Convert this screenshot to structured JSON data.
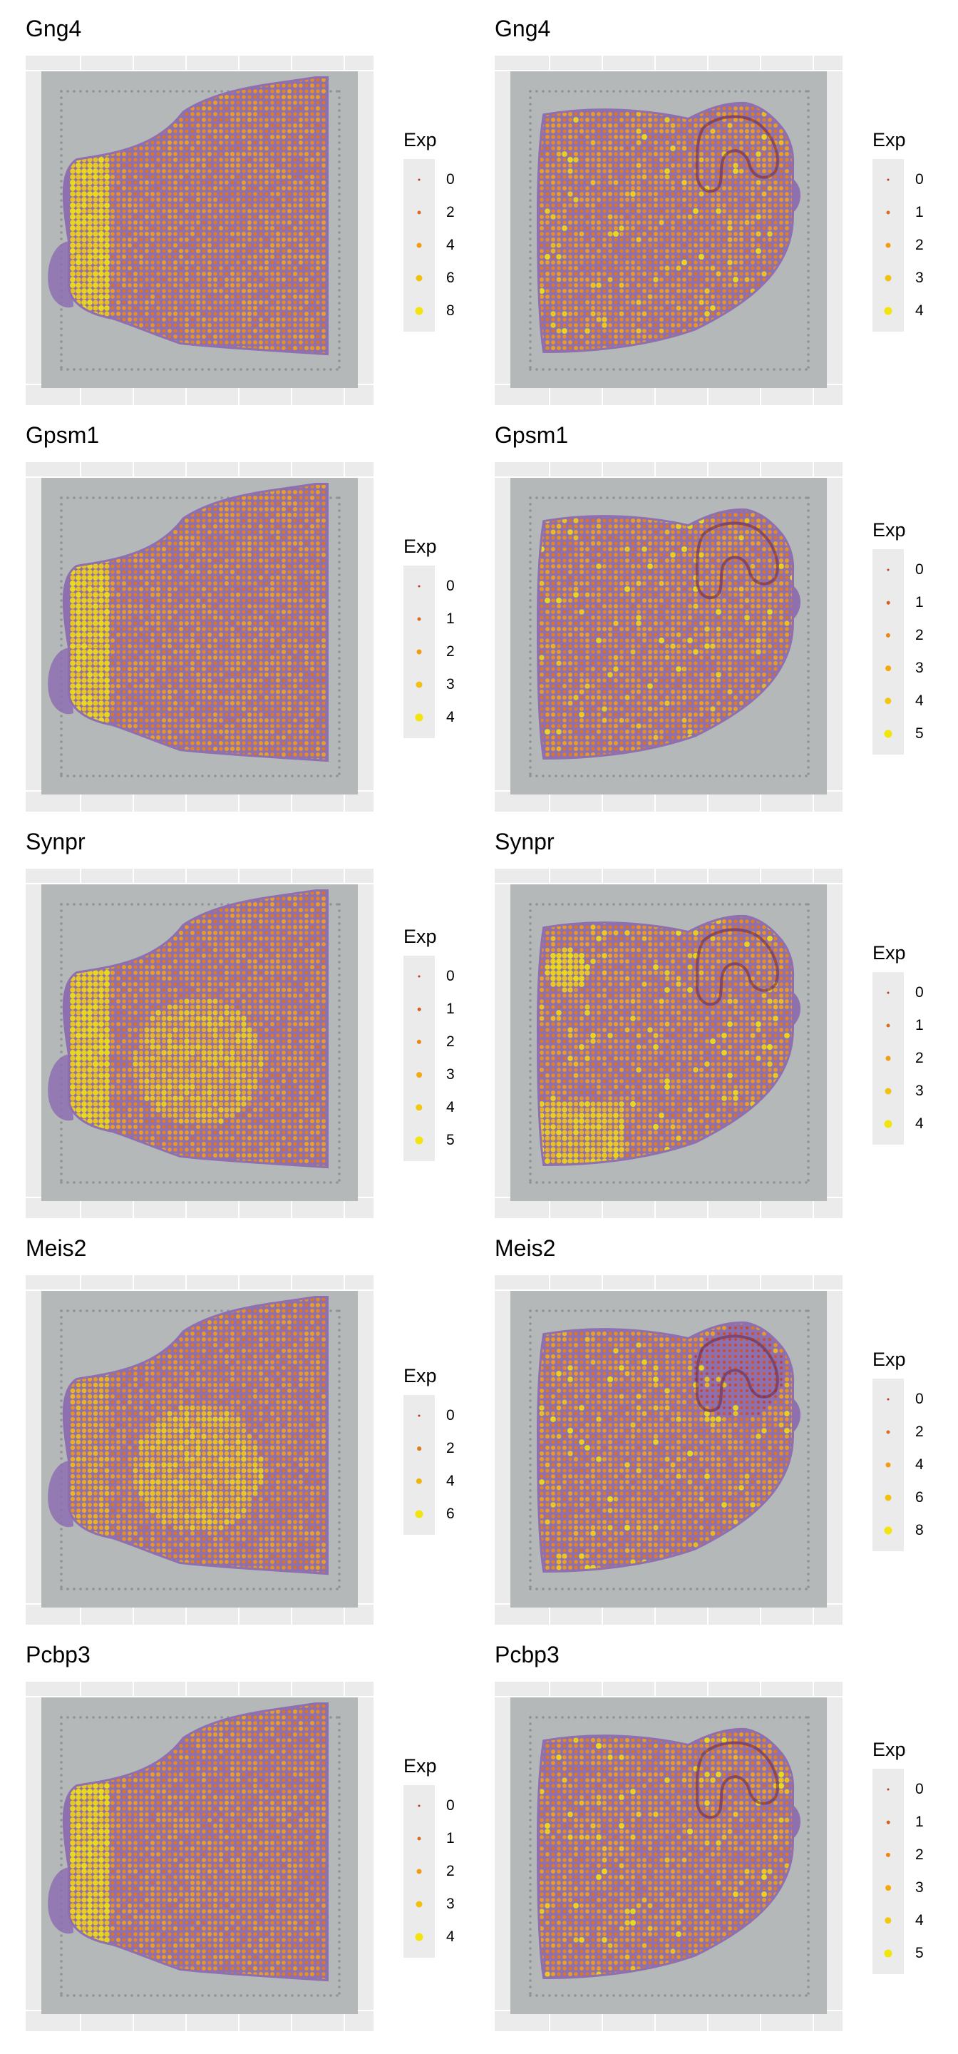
{
  "figure": {
    "legend_title": "Exp",
    "colors": {
      "low": "#c0392b",
      "mid": "#f39c12",
      "high": "#f1e40f",
      "tissue": "#8e6fb0",
      "slide": "#b4b8b8",
      "panel": "#ebebeb",
      "fiducial": "#8f9393"
    },
    "panels": [
      {
        "gene": "Gng4",
        "section": "anterior",
        "legend_levels": [
          "0",
          "2",
          "4",
          "6",
          "8"
        ],
        "expression_pattern": "high-olfactory-bulb"
      },
      {
        "gene": "Gng4",
        "section": "posterior",
        "legend_levels": [
          "0",
          "1",
          "2",
          "3",
          "4"
        ],
        "expression_pattern": "diffuse"
      },
      {
        "gene": "Gpsm1",
        "section": "anterior",
        "legend_levels": [
          "0",
          "1",
          "2",
          "3",
          "4"
        ],
        "expression_pattern": "high-olfactory-bulb"
      },
      {
        "gene": "Gpsm1",
        "section": "posterior",
        "legend_levels": [
          "0",
          "1",
          "2",
          "3",
          "4",
          "5"
        ],
        "expression_pattern": "diffuse"
      },
      {
        "gene": "Synpr",
        "section": "anterior",
        "legend_levels": [
          "0",
          "1",
          "2",
          "3",
          "4",
          "5"
        ],
        "expression_pattern": "high-olfactory-bulb-and-striatum"
      },
      {
        "gene": "Synpr",
        "section": "posterior",
        "legend_levels": [
          "0",
          "1",
          "2",
          "3",
          "4"
        ],
        "expression_pattern": "hippocampus-and-ventral"
      },
      {
        "gene": "Meis2",
        "section": "anterior",
        "legend_levels": [
          "0",
          "2",
          "4",
          "6"
        ],
        "expression_pattern": "striatum"
      },
      {
        "gene": "Meis2",
        "section": "posterior",
        "legend_levels": [
          "0",
          "2",
          "4",
          "6",
          "8"
        ],
        "expression_pattern": "low-cerebellum"
      },
      {
        "gene": "Pcbp3",
        "section": "anterior",
        "legend_levels": [
          "0",
          "1",
          "2",
          "3",
          "4"
        ],
        "expression_pattern": "high-olfactory-bulb"
      },
      {
        "gene": "Pcbp3",
        "section": "posterior",
        "legend_levels": [
          "0",
          "1",
          "2",
          "3",
          "4",
          "5"
        ],
        "expression_pattern": "diffuse"
      }
    ]
  }
}
